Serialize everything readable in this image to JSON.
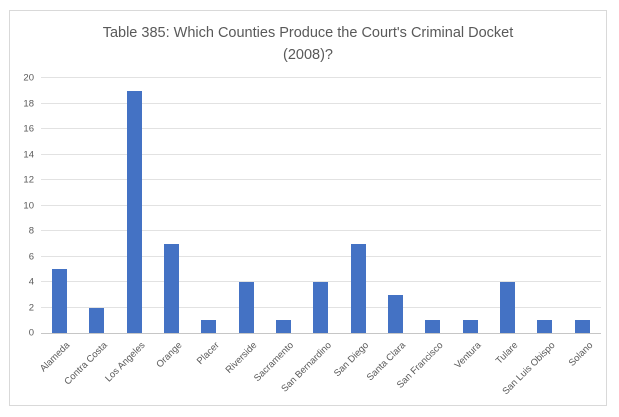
{
  "chart": {
    "title_line1": "Table 385: Which Counties Produce the Court's Criminal Docket",
    "title_line2": "(2008)?"
  },
  "chart_data": {
    "type": "bar",
    "title": "Table 385: Which Counties Produce the Court's Criminal Docket (2008)?",
    "categories": [
      "Alameda",
      "Contra Costa",
      "Los Angeles",
      "Orange",
      "Placer",
      "Riverside",
      "Sacramento",
      "San Bernardino",
      "San Diego",
      "Santa Clara",
      "San Francisco",
      "Ventura",
      "Tulare",
      "San Luis Obispo",
      "Solano"
    ],
    "values": [
      5,
      2,
      19,
      7,
      1,
      4,
      1,
      4,
      7,
      3,
      1,
      1,
      4,
      1,
      1
    ],
    "xlabel": "",
    "ylabel": "",
    "ylim": [
      0,
      20
    ],
    "ytick_step": 2,
    "grid": true,
    "legend": false,
    "bar_color": "#4472c4",
    "gridline_color": "#e2e2e2",
    "axis_line_color": "#c6c6c6",
    "text_color": "#595959",
    "border_color": "#d9d9d9",
    "background_color": "#ffffff"
  }
}
